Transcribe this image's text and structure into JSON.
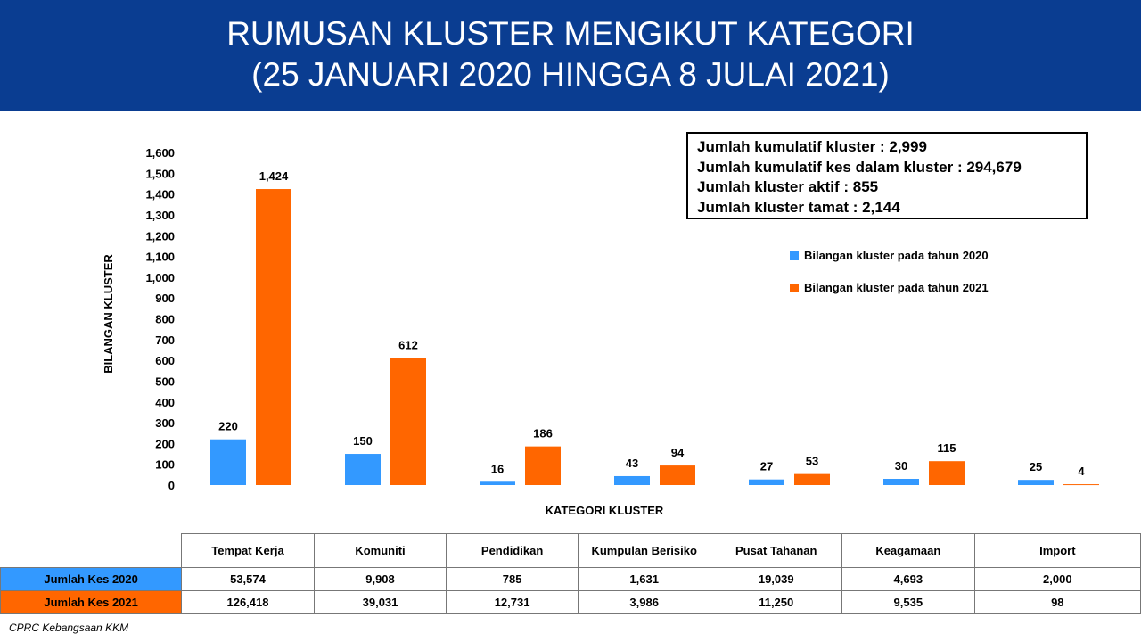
{
  "title": {
    "line1": "RUMUSAN KLUSTER MENGIKUT KATEGORI",
    "line2": "(25 JANUARI 2020 HINGGA 8 JULAI 2021)"
  },
  "summary_box": [
    "Jumlah kumulatif kluster : 2,999",
    "Jumlah kumulatif kes dalam kluster : 294,679",
    "Jumlah kluster aktif : 855",
    "Jumlah kluster tamat : 2,144"
  ],
  "colors": {
    "banner": "#0a3d91",
    "series2020": "#3399ff",
    "series2021": "#ff6600"
  },
  "chart_data": {
    "type": "bar",
    "title": "RUMUSAN KLUSTER MENGIKUT KATEGORI",
    "subtitle": "(25 JANUARI 2020 HINGGA 8 JULAI 2021)",
    "xlabel": "KATEGORI KLUSTER",
    "ylabel": "BILANGAN KLUSTER",
    "ylim": [
      0,
      1600
    ],
    "yticks": [
      0,
      100,
      200,
      300,
      400,
      500,
      600,
      700,
      800,
      900,
      1000,
      1100,
      1200,
      1300,
      1400,
      1500,
      1600
    ],
    "yticks_labels": [
      "0",
      "100",
      "200",
      "300",
      "400",
      "500",
      "600",
      "700",
      "800",
      "900",
      "1,000",
      "1,100",
      "1,200",
      "1,300",
      "1,400",
      "1,500",
      "1,600"
    ],
    "grid": false,
    "legend_position": "right",
    "categories": [
      "Tempat Kerja",
      "Komuniti",
      "Pendidikan",
      "Kumpulan Berisiko",
      "Pusat Tahanan",
      "Keagamaan",
      "Import"
    ],
    "series": [
      {
        "name": "Bilangan kluster pada tahun 2020",
        "values": [
          220,
          150,
          16,
          43,
          27,
          30,
          25
        ]
      },
      {
        "name": "Bilangan kluster pada tahun 2021",
        "values": [
          1424,
          612,
          186,
          94,
          53,
          115,
          4
        ]
      }
    ]
  },
  "table": {
    "headers": [
      "Tempat Kerja",
      "Komuniti",
      "Pendidikan",
      "Kumpulan Berisiko",
      "Pusat Tahanan",
      "Keagamaan",
      "Import"
    ],
    "rows": [
      {
        "label": "Jumlah Kes 2020",
        "values": [
          "53,574",
          "9,908",
          "785",
          "1,631",
          "19,039",
          "4,693",
          "2,000"
        ]
      },
      {
        "label": "Jumlah Kes 2021",
        "values": [
          "126,418",
          "39,031",
          "12,731",
          "3,986",
          "11,250",
          "9,535",
          "98"
        ]
      }
    ]
  },
  "footer": "CPRC Kebangsaan KKM"
}
